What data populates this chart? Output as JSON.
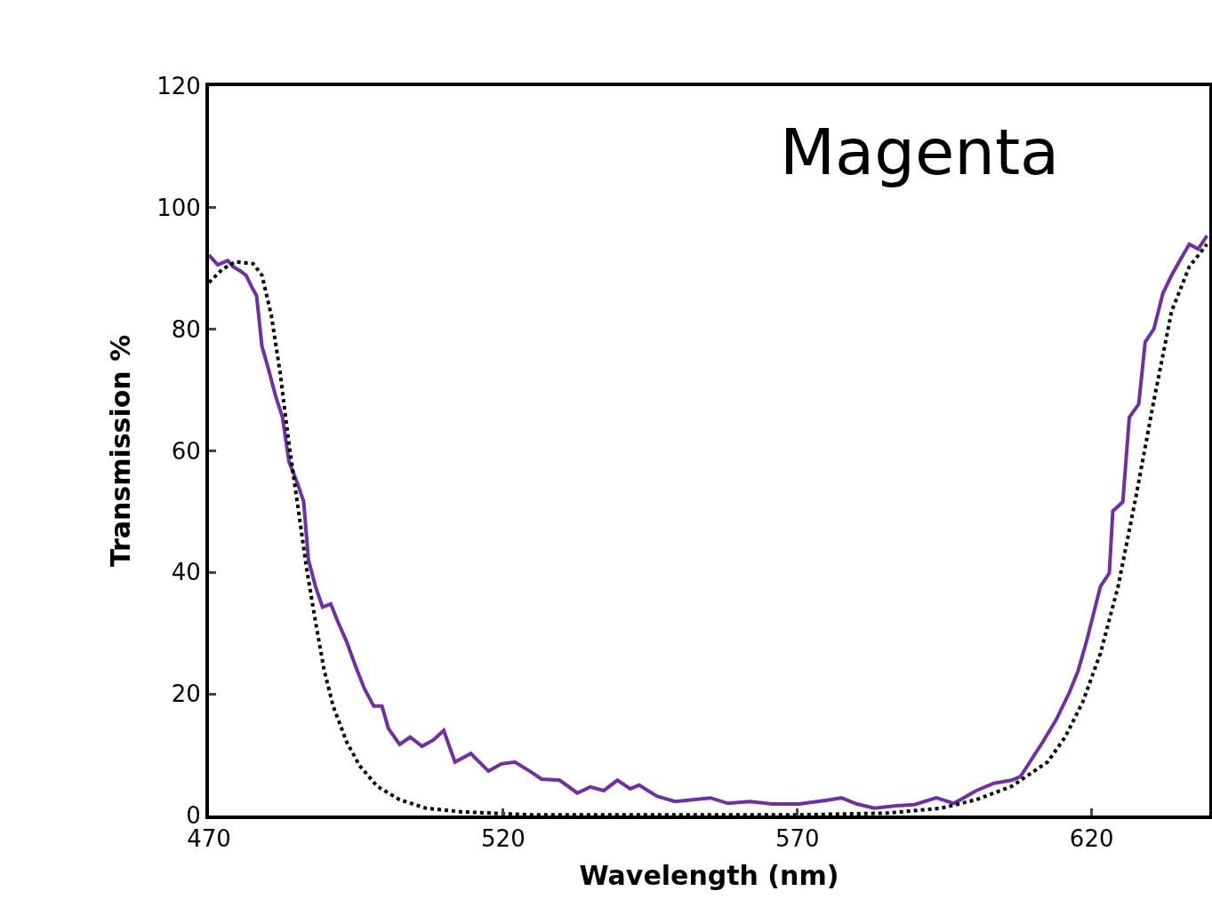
{
  "chart_data": {
    "type": "line",
    "xlabel": "Wavelength (nm)",
    "ylabel": "Transmission %",
    "annotations": [
      "Magenta"
    ],
    "xlim": [
      470,
      640
    ],
    "xticks": [
      470,
      520,
      570,
      620
    ],
    "ylim": [
      0,
      120
    ],
    "yticks": [
      0,
      20,
      40,
      60,
      80,
      100,
      120
    ],
    "grid": false,
    "series": [
      {
        "color": "#7030a0",
        "line_style": "solid",
        "x": [
          470,
          471.5,
          473.2,
          474.1,
          475.3,
          476.3,
          477.2,
          478.1,
          479,
          480.1,
          481.3,
          482.5,
          483.6,
          485.1,
          486.1,
          486.9,
          488.1,
          489.3,
          490.7,
          491.9,
          493.4,
          494.9,
          496.4,
          498,
          499.4,
          500.5,
          502.4,
          504.2,
          506.2,
          508.1,
          509.9,
          511.8,
          514.5,
          517.5,
          519.7,
          522,
          525,
          526.5,
          529.6,
          532.6,
          534.8,
          537.1,
          539.4,
          541.6,
          543.1,
          546.1,
          549.2,
          552.2,
          555.2,
          558.2,
          561.9,
          565.7,
          570.3,
          574.8,
          577.5,
          580.1,
          583.1,
          586.8,
          589.9,
          593.6,
          596.6,
          600.4,
          603.4,
          606.4,
          607.9,
          609.5,
          611.7,
          614,
          616.2,
          617.7,
          619.2,
          621.5,
          623,
          623.6,
          625.3,
          626.4,
          628,
          629.1,
          630.6,
          632.1,
          633.6,
          635.1,
          636.6,
          638.1,
          639.6
        ],
        "values": [
          92.2,
          90.6,
          91.3,
          90.3,
          89.6,
          88.9,
          87.1,
          85.5,
          77.2,
          73.5,
          69.1,
          65.5,
          58.2,
          54.5,
          51.6,
          42.1,
          37.7,
          34.3,
          34.8,
          31.9,
          28.6,
          24.6,
          20.9,
          18,
          18,
          14.3,
          11.7,
          12.9,
          11.4,
          12.4,
          14,
          8.8,
          10.2,
          7.3,
          8.5,
          8.8,
          7,
          6,
          5.8,
          3.7,
          4.7,
          4.1,
          5.8,
          4.4,
          5,
          3.2,
          2.3,
          2.6,
          2.9,
          2,
          2.3,
          1.9,
          1.9,
          2.5,
          2.9,
          1.9,
          1.2,
          1.6,
          1.8,
          2.9,
          2,
          4.1,
          5.3,
          5.8,
          6.4,
          8.8,
          12.1,
          15.8,
          20.2,
          23.8,
          28.9,
          37.7,
          39.9,
          50.1,
          51.6,
          65.5,
          67.7,
          77.9,
          80.1,
          85.9,
          88.9,
          91.5,
          94,
          93.2,
          95.4
        ]
      },
      {
        "color": "#000000",
        "line_style": "dotted",
        "x": [
          470,
          472.3,
          474.5,
          477.5,
          479,
          480.6,
          482.1,
          483.6,
          485.1,
          486.6,
          488.1,
          489.6,
          491.1,
          493.4,
          495.6,
          498.6,
          502.4,
          506.9,
          513,
          525,
          570,
          585.3,
          594.4,
          600.4,
          606.4,
          612.5,
          615.5,
          618.5,
          621.5,
          624.5,
          627.5,
          630.6,
          633.6,
          636.6,
          639.6
        ],
        "values": [
          87.7,
          89.9,
          91.1,
          90.8,
          88.9,
          82.3,
          72.8,
          61.1,
          50.9,
          40.6,
          31.9,
          23.8,
          18,
          12.1,
          8.2,
          4.8,
          2.6,
          1.2,
          0.6,
          0.1,
          0.1,
          0.4,
          1.2,
          2.6,
          4.8,
          8.8,
          12.9,
          18.7,
          26.7,
          37.7,
          52.3,
          68.4,
          83,
          90.3,
          94
        ]
      }
    ]
  }
}
